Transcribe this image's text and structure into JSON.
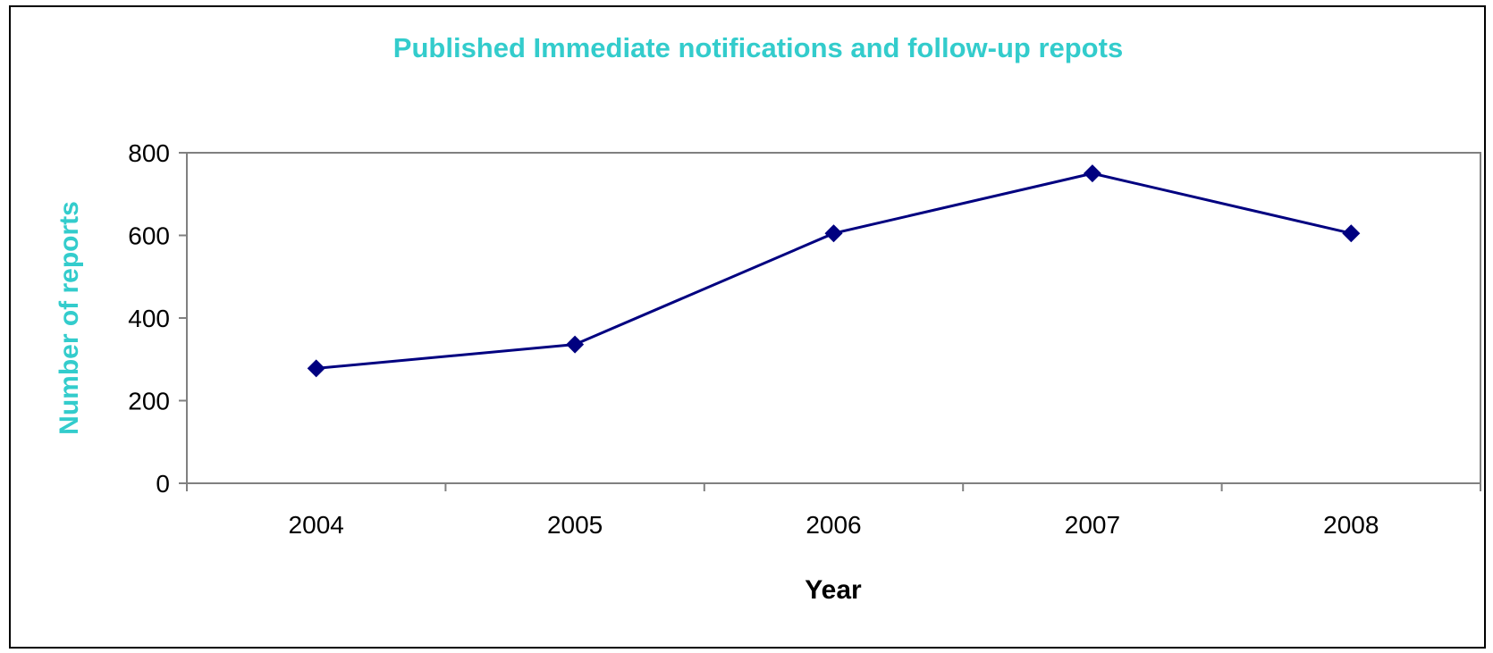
{
  "chart_data": {
    "type": "line",
    "title": "Published Immediate notifications and follow-up repots",
    "xlabel": "Year",
    "ylabel": "Number of reports",
    "categories": [
      "2004",
      "2005",
      "2006",
      "2007",
      "2008"
    ],
    "series": [
      {
        "values": [
          278,
          336,
          605,
          750,
          605
        ],
        "color": "#000080",
        "marker": "diamond"
      }
    ],
    "ylim": [
      0,
      800
    ],
    "yticks": [
      0,
      200,
      400,
      600,
      800
    ],
    "ytick_labels": [
      "0",
      "200",
      "400",
      "600",
      "800"
    ],
    "grid": false,
    "legend": "none"
  },
  "colors": {
    "title": "#33CCCC",
    "ylabel": "#33CCCC",
    "series": "#000080",
    "axis": "#808080",
    "text": "#000000"
  }
}
